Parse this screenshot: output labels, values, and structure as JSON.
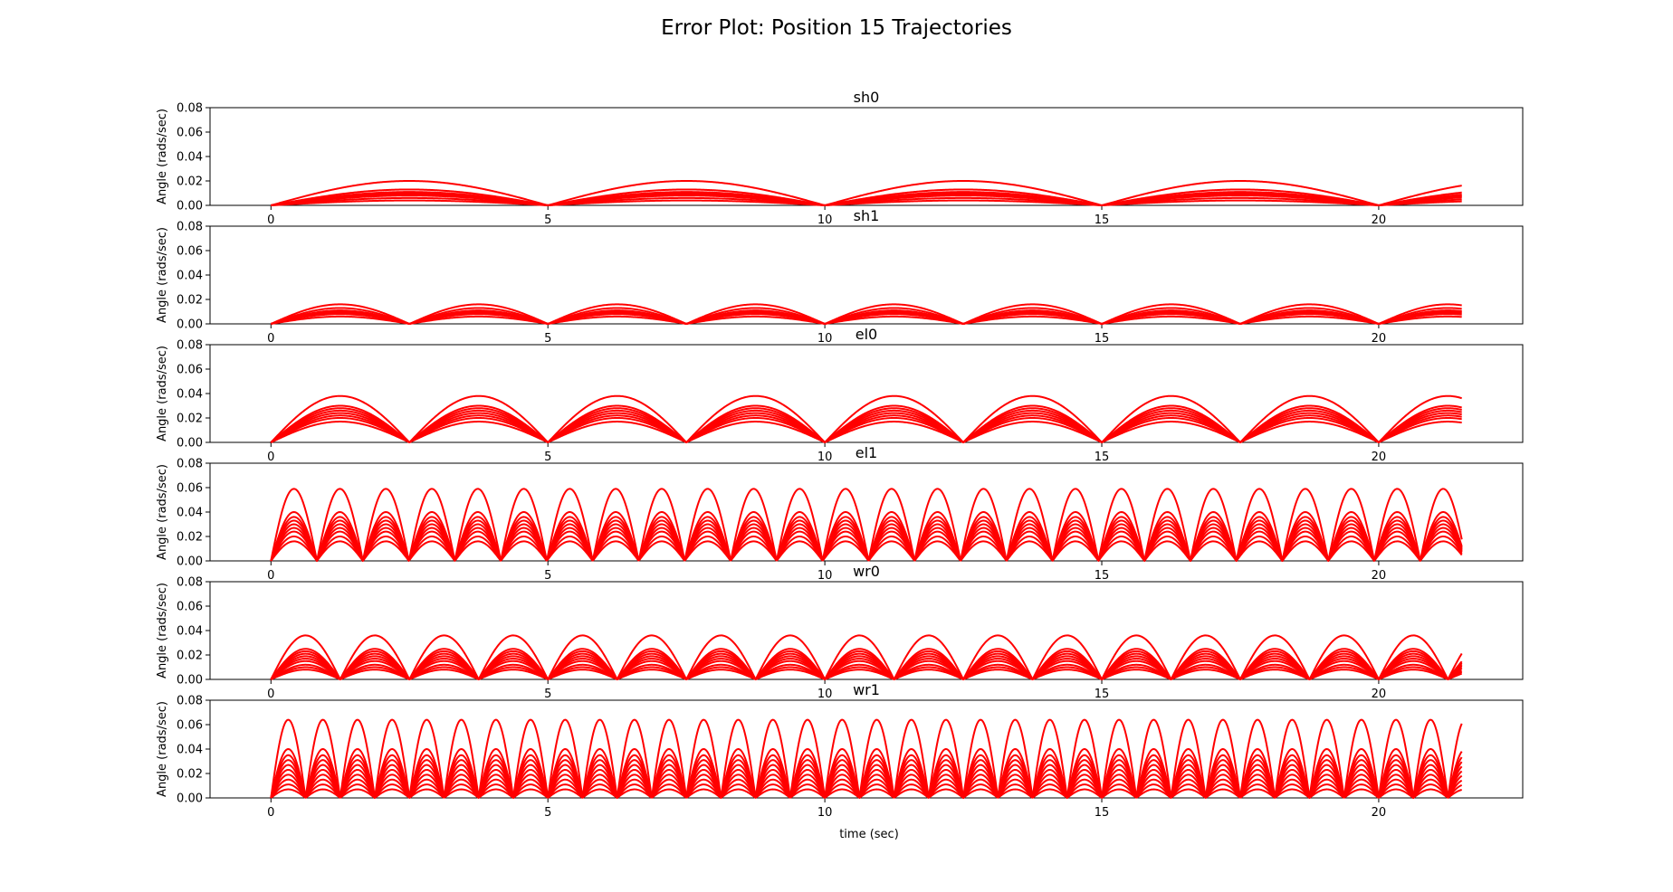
{
  "chart_data": {
    "type": "line",
    "title": "Error Plot: Position 15 Trajectories",
    "xlabel": "time (sec)",
    "ylabel": "Angle (rads/sec)",
    "xlim": [
      -1.1,
      22.6
    ],
    "ylim": [
      0,
      0.08
    ],
    "x_ticks": [
      0,
      5,
      10,
      15,
      20
    ],
    "x_tick_labels": [
      "0",
      "5",
      "10",
      "15",
      "20"
    ],
    "y_ticks": [
      0,
      0.02,
      0.04,
      0.06,
      0.08
    ],
    "y_tick_labels": [
      "0.00",
      "0.02",
      "0.04",
      "0.06",
      "0.08"
    ],
    "grid": false,
    "legend": "none",
    "line_color": "#ff0000",
    "x_end": 21.5,
    "panels": [
      {
        "name": "sh0",
        "period": 5.0,
        "phase": 0.0,
        "amplitudes": [
          0.02,
          0.013,
          0.011,
          0.01,
          0.009,
          0.008,
          0.006,
          0.004
        ]
      },
      {
        "name": "sh1",
        "period": 2.5,
        "phase": 0.0,
        "amplitudes": [
          0.016,
          0.013,
          0.011,
          0.01,
          0.009,
          0.008,
          0.006
        ]
      },
      {
        "name": "el0",
        "period": 2.5,
        "phase": 0.0,
        "amplitudes": [
          0.038,
          0.03,
          0.028,
          0.026,
          0.024,
          0.022,
          0.02,
          0.017
        ]
      },
      {
        "name": "el1",
        "period": 0.83,
        "phase": 0.0,
        "amplitudes": [
          0.059,
          0.04,
          0.036,
          0.033,
          0.03,
          0.027,
          0.024,
          0.02,
          0.016
        ]
      },
      {
        "name": "wr0",
        "period": 1.25,
        "phase": 0.0,
        "amplitudes": [
          0.036,
          0.025,
          0.023,
          0.021,
          0.019,
          0.017,
          0.015,
          0.012,
          0.01,
          0.008
        ]
      },
      {
        "name": "wr1",
        "period": 0.625,
        "phase": 0.0,
        "amplitudes": [
          0.064,
          0.04,
          0.035,
          0.031,
          0.027,
          0.023,
          0.019,
          0.015,
          0.011,
          0.007
        ]
      }
    ]
  }
}
